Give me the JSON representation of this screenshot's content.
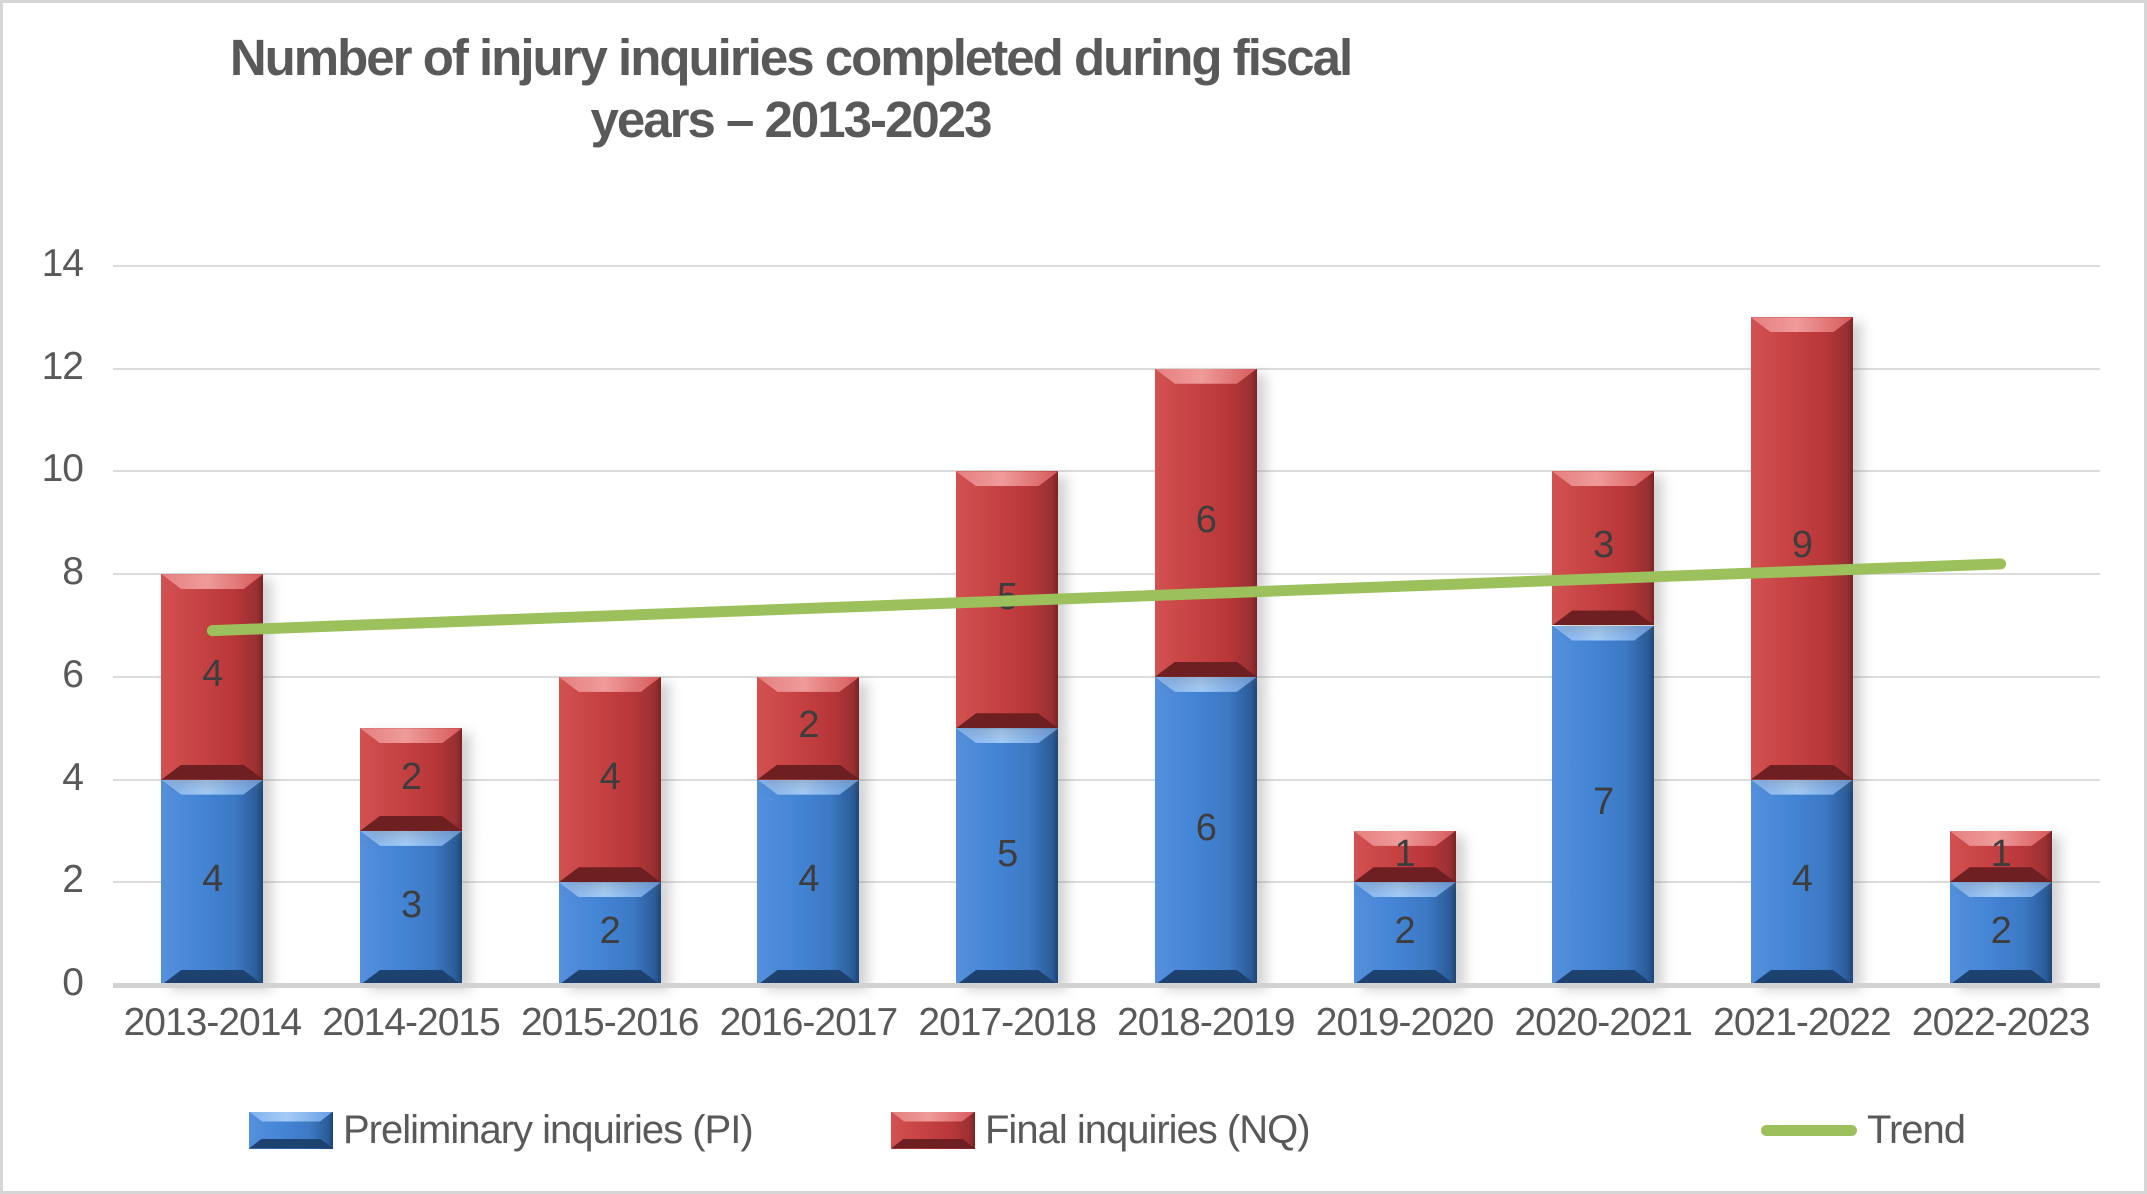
{
  "title": {
    "line1": "Number of injury inquiries completed during fiscal",
    "line2": "years – 2013-2023"
  },
  "legend": {
    "items": [
      {
        "label": "Preliminary inquiries (PI)",
        "marker": "bar",
        "color": "#4080CE"
      },
      {
        "label": "Final inquiries (NQ)",
        "marker": "bar",
        "color": "#C23B3E"
      },
      {
        "label": "Trend",
        "marker": "line",
        "color": "#9CC15C"
      }
    ]
  },
  "chart_data": {
    "type": "bar",
    "stacked": true,
    "title": "Number of injury inquiries completed during fiscal years – 2013-2023",
    "categories": [
      "2013-2014",
      "2014-2015",
      "2015-2016",
      "2016-2017",
      "2017-2018",
      "2018-2019",
      "2019-2020",
      "2020-2021",
      "2021-2022",
      "2022-2023"
    ],
    "series": [
      {
        "name": "Preliminary inquiries (PI)",
        "color": "#4080CE",
        "values": [
          4,
          3,
          2,
          4,
          5,
          6,
          2,
          7,
          4,
          2
        ]
      },
      {
        "name": "Final inquiries (NQ)",
        "color": "#C23B3E",
        "values": [
          4,
          2,
          4,
          2,
          5,
          6,
          1,
          3,
          9,
          1
        ]
      }
    ],
    "totals": [
      8,
      5,
      6,
      6,
      10,
      12,
      3,
      10,
      13,
      3
    ],
    "trend": {
      "name": "Trend",
      "color": "#9CC15C",
      "start": 6.9,
      "end": 8.2
    },
    "ylim": [
      0,
      14
    ],
    "yticks": [
      0,
      2,
      4,
      6,
      8,
      10,
      12,
      14
    ],
    "xlabel": "",
    "ylabel": "",
    "grid": true,
    "data_labels": true,
    "legend_position": "bottom",
    "text_color": "#595959",
    "data_label_color": "#3D3D3D",
    "gridline_color": "#DCDCDC"
  }
}
